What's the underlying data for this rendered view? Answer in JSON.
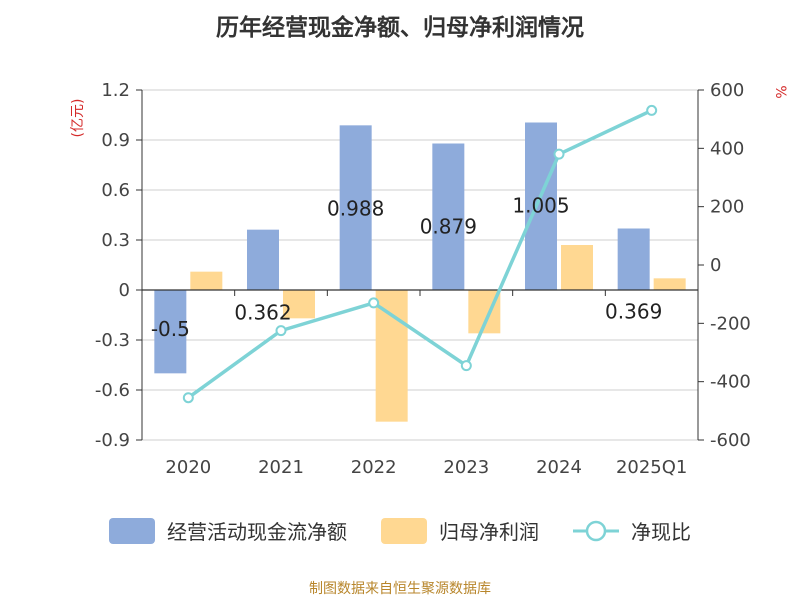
{
  "title": "历年经营现金净额、归母净利润情况",
  "footer": "制图数据来自恒生聚源数据库",
  "colors": {
    "bar1": "#8eabdb",
    "bar2": "#ffd892",
    "line": "#7ed3d6"
  },
  "chart_data": {
    "type": "bar+line",
    "categories": [
      "2020",
      "2021",
      "2022",
      "2023",
      "2024",
      "2025Q1"
    ],
    "series": [
      {
        "name": "经营活动现金流净额",
        "type": "bar",
        "axis": "left",
        "values": [
          -0.5,
          0.362,
          0.988,
          0.879,
          1.005,
          0.369
        ],
        "labels": [
          "-0.5",
          "0.362",
          "0.988",
          "0.879",
          "1.005",
          "0.369"
        ]
      },
      {
        "name": "归母净利润",
        "type": "bar",
        "axis": "left",
        "values": [
          0.11,
          -0.17,
          -0.79,
          -0.26,
          0.27,
          0.07
        ]
      },
      {
        "name": "净现比",
        "type": "line",
        "axis": "right",
        "values": [
          -455,
          -225,
          -130,
          -345,
          380,
          530
        ]
      }
    ],
    "left_axis": {
      "unit": "(亿元)",
      "ticks": [
        "1.2",
        "0.9",
        "0.6",
        "0.3",
        "0",
        "-0.3",
        "-0.6",
        "-0.9"
      ],
      "range": [
        -0.9,
        1.2
      ]
    },
    "right_axis": {
      "unit": "%",
      "ticks": [
        "600",
        "400",
        "200",
        "0",
        "-200",
        "-400",
        "-600"
      ],
      "range": [
        -600,
        600
      ]
    },
    "grid": true,
    "legend_position": "bottom"
  }
}
